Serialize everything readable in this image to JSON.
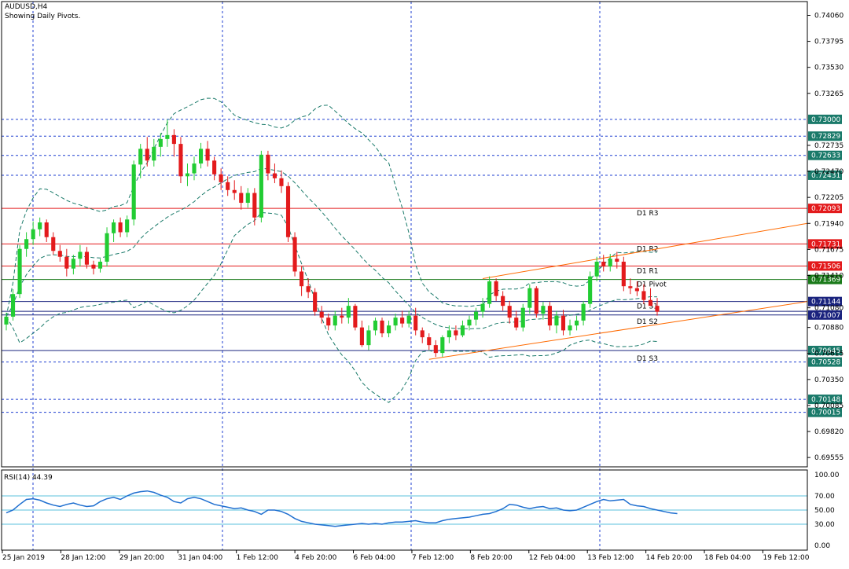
{
  "header": {
    "title": "AUDUSD,H4",
    "subtitle": "Showing Daily Pivots."
  },
  "chart_data": [
    {
      "type": "candlestick",
      "symbol": "AUDUSD",
      "timeframe": "H4",
      "ylim": [
        0.6946,
        0.742
      ],
      "y_ticks": [
        0.7406,
        0.73795,
        0.7353,
        0.73265,
        0.72735,
        0.7247,
        0.72205,
        0.7194,
        0.71675,
        0.7141,
        0.7108,
        0.7088,
        0.70615,
        0.7035,
        0.70085,
        0.6982,
        0.69555
      ],
      "x_ticks": [
        "25 Jan 2019",
        "28 Jan 12:00",
        "29 Jan 20:00",
        "31 Jan 04:00",
        "1 Feb 12:00",
        "4 Feb 20:00",
        "6 Feb 04:00",
        "7 Feb 12:00",
        "8 Feb 20:00",
        "12 Feb 04:00",
        "13 Feb 12:00",
        "14 Feb 20:00",
        "18 Feb 04:00",
        "19 Feb 12:00"
      ],
      "price_levels": [
        {
          "value": 0.73,
          "label": "0.73000",
          "style": "dashed"
        },
        {
          "value": 0.72829,
          "label": "0.72829",
          "style": "dashed"
        },
        {
          "value": 0.72633,
          "label": "0.72633",
          "style": "dashed"
        },
        {
          "value": 0.72431,
          "label": "0.72431",
          "style": "dashed"
        },
        {
          "value": 0.70645,
          "label": "0.70645",
          "style": "dashed"
        },
        {
          "value": 0.70528,
          "label": "0.70528",
          "style": "dashed"
        },
        {
          "value": 0.70148,
          "label": "0.70148",
          "style": "dashed"
        },
        {
          "value": 0.70015,
          "label": "0.70015",
          "style": "dashed"
        }
      ],
      "pivots": [
        {
          "name": "D1 R3",
          "value": 0.72093,
          "label": "0.72093",
          "color": "#e31a1c"
        },
        {
          "name": "D1 R2",
          "value": 0.71731,
          "label": "0.71731",
          "color": "#e31a1c"
        },
        {
          "name": "D1 R1",
          "value": 0.71506,
          "label": "0.71506",
          "color": "#e31a1c"
        },
        {
          "name": "D1 Pivot",
          "value": 0.71369,
          "label": "0.71369",
          "color": "#1a7a1a"
        },
        {
          "name": "D1 S1",
          "value": 0.71144,
          "label": "0.71144",
          "color": "#1a237e"
        },
        {
          "name": "D1 S2",
          "value": 0.71007,
          "label": "0.71007",
          "color": "#1a237e"
        },
        {
          "name": "D1 S3",
          "value": 0.70645,
          "label": "",
          "color": "#1a237e"
        }
      ],
      "current_price": {
        "value": 0.71044,
        "label": "0.71044"
      },
      "candles": [
        [
          0.7091,
          0.7103,
          0.7085,
          0.7099
        ],
        [
          0.7099,
          0.7127,
          0.7095,
          0.7122
        ],
        [
          0.7122,
          0.7172,
          0.7118,
          0.7168
        ],
        [
          0.7168,
          0.7185,
          0.716,
          0.7178
        ],
        [
          0.7178,
          0.7196,
          0.7172,
          0.7188
        ],
        [
          0.7188,
          0.72,
          0.7181,
          0.7195
        ],
        [
          0.7195,
          0.7198,
          0.7175,
          0.718
        ],
        [
          0.718,
          0.7185,
          0.7162,
          0.7166
        ],
        [
          0.7166,
          0.7172,
          0.7155,
          0.716
        ],
        [
          0.716,
          0.7168,
          0.714,
          0.7148
        ],
        [
          0.7148,
          0.7162,
          0.7142,
          0.7158
        ],
        [
          0.7158,
          0.7172,
          0.715,
          0.7165
        ],
        [
          0.7165,
          0.717,
          0.7148,
          0.7152
        ],
        [
          0.7152,
          0.7156,
          0.7142,
          0.7148
        ],
        [
          0.7148,
          0.7158,
          0.7144,
          0.7155
        ],
        [
          0.7155,
          0.719,
          0.715,
          0.7184
        ],
        [
          0.7184,
          0.7198,
          0.7175,
          0.7195
        ],
        [
          0.7195,
          0.72,
          0.718,
          0.7185
        ],
        [
          0.7185,
          0.7202,
          0.718,
          0.7198
        ],
        [
          0.7198,
          0.7258,
          0.7192,
          0.7254
        ],
        [
          0.7254,
          0.7275,
          0.724,
          0.727
        ],
        [
          0.727,
          0.7282,
          0.7252,
          0.7258
        ],
        [
          0.7258,
          0.728,
          0.7252,
          0.7272
        ],
        [
          0.7272,
          0.7286,
          0.7262,
          0.728
        ],
        [
          0.728,
          0.73,
          0.7272,
          0.7284
        ],
        [
          0.7284,
          0.729,
          0.7262,
          0.7275
        ],
        [
          0.7275,
          0.7282,
          0.7235,
          0.7242
        ],
        [
          0.7242,
          0.7255,
          0.7232,
          0.7245
        ],
        [
          0.7245,
          0.7262,
          0.7238,
          0.7255
        ],
        [
          0.7255,
          0.7276,
          0.725,
          0.727
        ],
        [
          0.727,
          0.7278,
          0.7252,
          0.7258
        ],
        [
          0.7258,
          0.7262,
          0.7238,
          0.7244
        ],
        [
          0.7244,
          0.725,
          0.7228,
          0.7236
        ],
        [
          0.7236,
          0.7242,
          0.7222,
          0.7228
        ],
        [
          0.7228,
          0.7238,
          0.7218,
          0.7225
        ],
        [
          0.7225,
          0.7232,
          0.7208,
          0.7215
        ],
        [
          0.7215,
          0.723,
          0.721,
          0.7225
        ],
        [
          0.7225,
          0.723,
          0.7192,
          0.72
        ],
        [
          0.72,
          0.7268,
          0.7195,
          0.7264
        ],
        [
          0.7264,
          0.7268,
          0.7238,
          0.7245
        ],
        [
          0.7245,
          0.7255,
          0.7235,
          0.724
        ],
        [
          0.724,
          0.7248,
          0.7225,
          0.7232
        ],
        [
          0.7232,
          0.7236,
          0.7175,
          0.718
        ],
        [
          0.718,
          0.7185,
          0.714,
          0.7145
        ],
        [
          0.7145,
          0.715,
          0.712,
          0.713
        ],
        [
          0.713,
          0.7138,
          0.7118,
          0.7124
        ],
        [
          0.7124,
          0.7128,
          0.71,
          0.7104
        ],
        [
          0.7104,
          0.711,
          0.7092,
          0.7098
        ],
        [
          0.7098,
          0.7102,
          0.7085,
          0.709
        ],
        [
          0.709,
          0.7105,
          0.7085,
          0.71
        ],
        [
          0.71,
          0.7108,
          0.7092,
          0.7098
        ],
        [
          0.7098,
          0.7118,
          0.7092,
          0.711
        ],
        [
          0.711,
          0.7112,
          0.7085,
          0.7088
        ],
        [
          0.7088,
          0.7095,
          0.7068,
          0.707
        ],
        [
          0.707,
          0.709,
          0.7065,
          0.7085
        ],
        [
          0.7085,
          0.7098,
          0.708,
          0.7095
        ],
        [
          0.7095,
          0.7098,
          0.7078,
          0.7082
        ],
        [
          0.7082,
          0.7095,
          0.7078,
          0.709
        ],
        [
          0.709,
          0.7102,
          0.7085,
          0.7098
        ],
        [
          0.7098,
          0.7105,
          0.7088,
          0.7092
        ],
        [
          0.7092,
          0.7105,
          0.7088,
          0.71
        ],
        [
          0.71,
          0.7108,
          0.708,
          0.7085
        ],
        [
          0.7085,
          0.7088,
          0.7072,
          0.7078
        ],
        [
          0.7078,
          0.7082,
          0.7065,
          0.707
        ],
        [
          0.707,
          0.7075,
          0.7058,
          0.7062
        ],
        [
          0.7062,
          0.708,
          0.7058,
          0.7078
        ],
        [
          0.7078,
          0.709,
          0.7072,
          0.7085
        ],
        [
          0.7085,
          0.709,
          0.7075,
          0.708
        ],
        [
          0.708,
          0.7095,
          0.7078,
          0.709
        ],
        [
          0.709,
          0.71,
          0.7085,
          0.7096
        ],
        [
          0.7096,
          0.7108,
          0.709,
          0.7104
        ],
        [
          0.7104,
          0.7118,
          0.7098,
          0.7112
        ],
        [
          0.7112,
          0.714,
          0.7108,
          0.7135
        ],
        [
          0.7135,
          0.7138,
          0.7115,
          0.712
        ],
        [
          0.712,
          0.7125,
          0.7105,
          0.711
        ],
        [
          0.711,
          0.7115,
          0.7092,
          0.7098
        ],
        [
          0.7098,
          0.7105,
          0.7085,
          0.7088
        ],
        [
          0.7088,
          0.7112,
          0.7084,
          0.7108
        ],
        [
          0.7108,
          0.7132,
          0.7102,
          0.7128
        ],
        [
          0.7128,
          0.713,
          0.7098,
          0.7102
        ],
        [
          0.7102,
          0.7114,
          0.7096,
          0.711
        ],
        [
          0.711,
          0.7114,
          0.7085,
          0.709
        ],
        [
          0.709,
          0.7105,
          0.7082,
          0.71
        ],
        [
          0.71,
          0.7106,
          0.708,
          0.7085
        ],
        [
          0.7085,
          0.7096,
          0.708,
          0.709
        ],
        [
          0.709,
          0.71,
          0.7085,
          0.7095
        ],
        [
          0.7095,
          0.7115,
          0.709,
          0.7112
        ],
        [
          0.7112,
          0.7145,
          0.7108,
          0.714
        ],
        [
          0.714,
          0.716,
          0.7135,
          0.7155
        ],
        [
          0.7155,
          0.7162,
          0.7145,
          0.715
        ],
        [
          0.715,
          0.7163,
          0.7145,
          0.7158
        ],
        [
          0.7158,
          0.7165,
          0.7148,
          0.7155
        ],
        [
          0.7155,
          0.716,
          0.7125,
          0.713
        ],
        [
          0.713,
          0.7138,
          0.7122,
          0.7128
        ],
        [
          0.7128,
          0.7135,
          0.712,
          0.7125
        ],
        [
          0.7125,
          0.7132,
          0.7112,
          0.7116
        ],
        [
          0.7116,
          0.7128,
          0.711,
          0.711
        ],
        [
          0.711,
          0.7118,
          0.71,
          0.7104
        ]
      ],
      "bollinger_bands": true,
      "channel_line_color": "#ff6a00"
    },
    {
      "type": "line",
      "title": "RSI(14) 44.39",
      "ylim": [
        0,
        100
      ],
      "y_ticks": [
        100.0,
        70.0,
        50.0,
        30.0,
        0.0
      ],
      "levels": [
        70,
        50,
        30
      ],
      "values": [
        46,
        50,
        58,
        65,
        66,
        64,
        60,
        57,
        55,
        58,
        60,
        57,
        55,
        56,
        62,
        66,
        68,
        65,
        70,
        74,
        76,
        77,
        75,
        71,
        68,
        62,
        60,
        66,
        68,
        66,
        62,
        58,
        56,
        54,
        52,
        53,
        50,
        48,
        44,
        50,
        50,
        48,
        44,
        38,
        34,
        32,
        30,
        29,
        28,
        27,
        28,
        29,
        30,
        31,
        30,
        31,
        30,
        32,
        33,
        33,
        34,
        35,
        33,
        32,
        32,
        35,
        37,
        38,
        39,
        40,
        42,
        44,
        45,
        48,
        52,
        58,
        57,
        54,
        52,
        54,
        55,
        52,
        53,
        50,
        49,
        50,
        54,
        58,
        62,
        65,
        63,
        64,
        65,
        58,
        56,
        55,
        52,
        50,
        48,
        46,
        45
      ]
    }
  ]
}
